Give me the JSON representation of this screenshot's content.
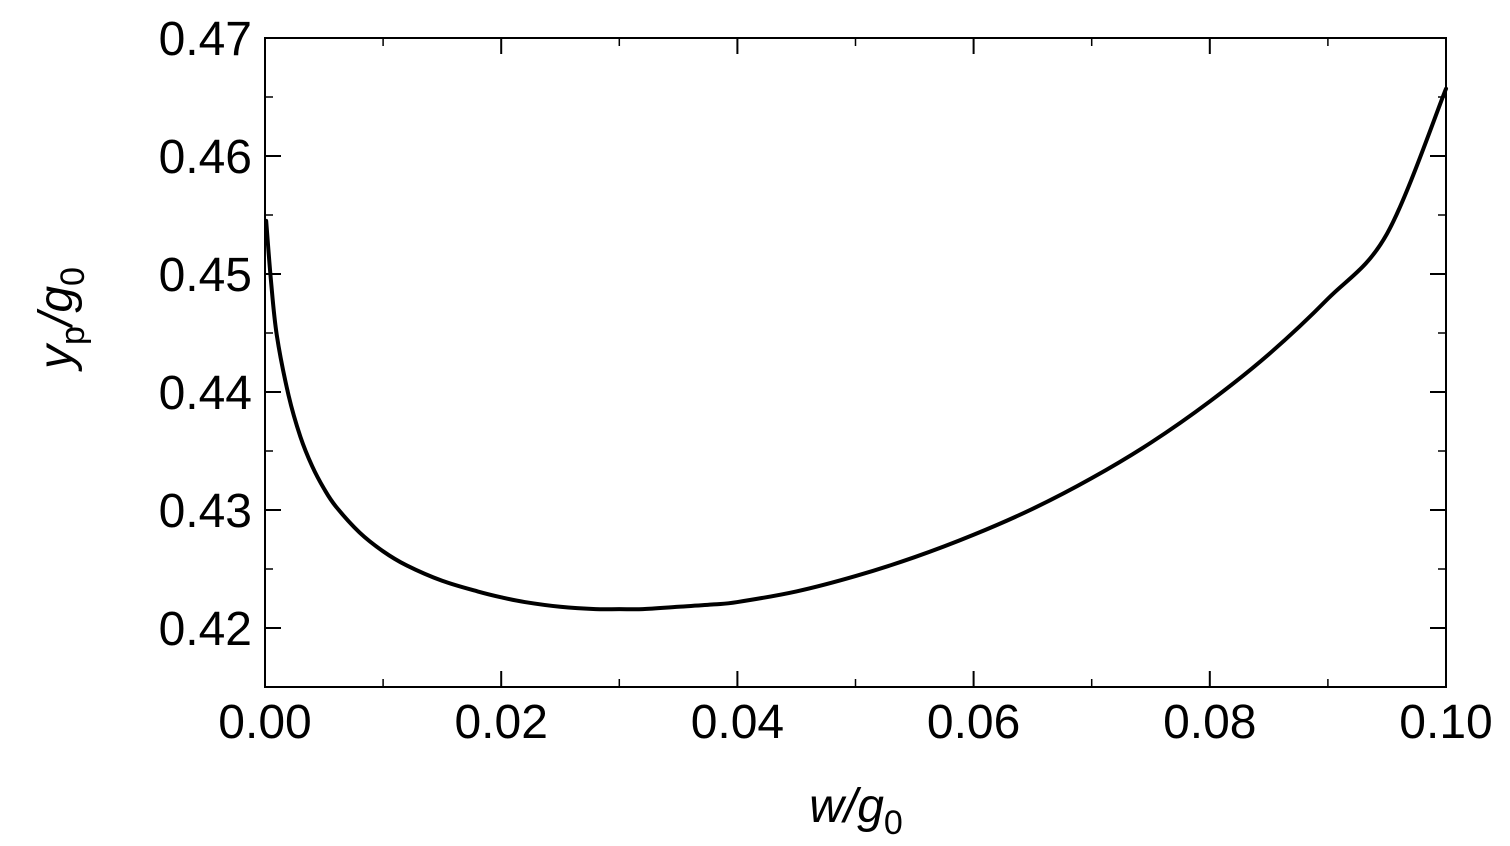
{
  "chart_data": {
    "type": "line",
    "title": "",
    "xlabel": {
      "parts": [
        {
          "text": "w/g",
          "style": "italic"
        },
        {
          "text": "0",
          "style": "sub"
        }
      ]
    },
    "ylabel": {
      "parts": [
        {
          "text": "y",
          "style": "italic"
        },
        {
          "text": "p",
          "style": "sub"
        },
        {
          "text": "/g",
          "style": "italic"
        },
        {
          "text": "0",
          "style": "sub"
        }
      ]
    },
    "xlim": [
      0,
      0.1
    ],
    "ylim": [
      0.415,
      0.47
    ],
    "xticks": [
      0,
      0.02,
      0.04,
      0.06,
      0.08,
      0.1
    ],
    "xtick_labels": [
      "0.00",
      "0.02",
      "0.04",
      "0.06",
      "0.08",
      "0.10"
    ],
    "yticks": [
      0.42,
      0.43,
      0.44,
      0.45,
      0.46,
      0.47
    ],
    "ytick_labels": [
      "0.42",
      "0.43",
      "0.44",
      "0.45",
      "0.46",
      "0.47"
    ],
    "x_minor_step": 0.01,
    "y_minor_step": 0.005,
    "grid": false,
    "legend": "none",
    "line_color": "#000000",
    "series": [
      {
        "x": [
          0.0001,
          0.0005,
          0.001,
          0.002,
          0.003,
          0.004,
          0.005,
          0.006,
          0.008,
          0.01,
          0.012,
          0.015,
          0.018,
          0.02,
          0.022,
          0.025,
          0.028,
          0.03,
          0.032,
          0.035,
          0.038,
          0.04,
          0.045,
          0.05,
          0.055,
          0.06,
          0.065,
          0.07,
          0.075,
          0.08,
          0.085,
          0.09,
          0.095,
          0.1
        ],
        "y": [
          0.4545,
          0.4495,
          0.4448,
          0.4397,
          0.4362,
          0.4337,
          0.4318,
          0.4303,
          0.4281,
          0.4265,
          0.4253,
          0.424,
          0.4231,
          0.4226,
          0.4222,
          0.4218,
          0.4216,
          0.4216,
          0.4216,
          0.4218,
          0.422,
          0.4222,
          0.4231,
          0.4244,
          0.426,
          0.4279,
          0.4301,
          0.4327,
          0.4357,
          0.4392,
          0.4432,
          0.4479,
          0.4534,
          0.4657
        ]
      }
    ]
  }
}
